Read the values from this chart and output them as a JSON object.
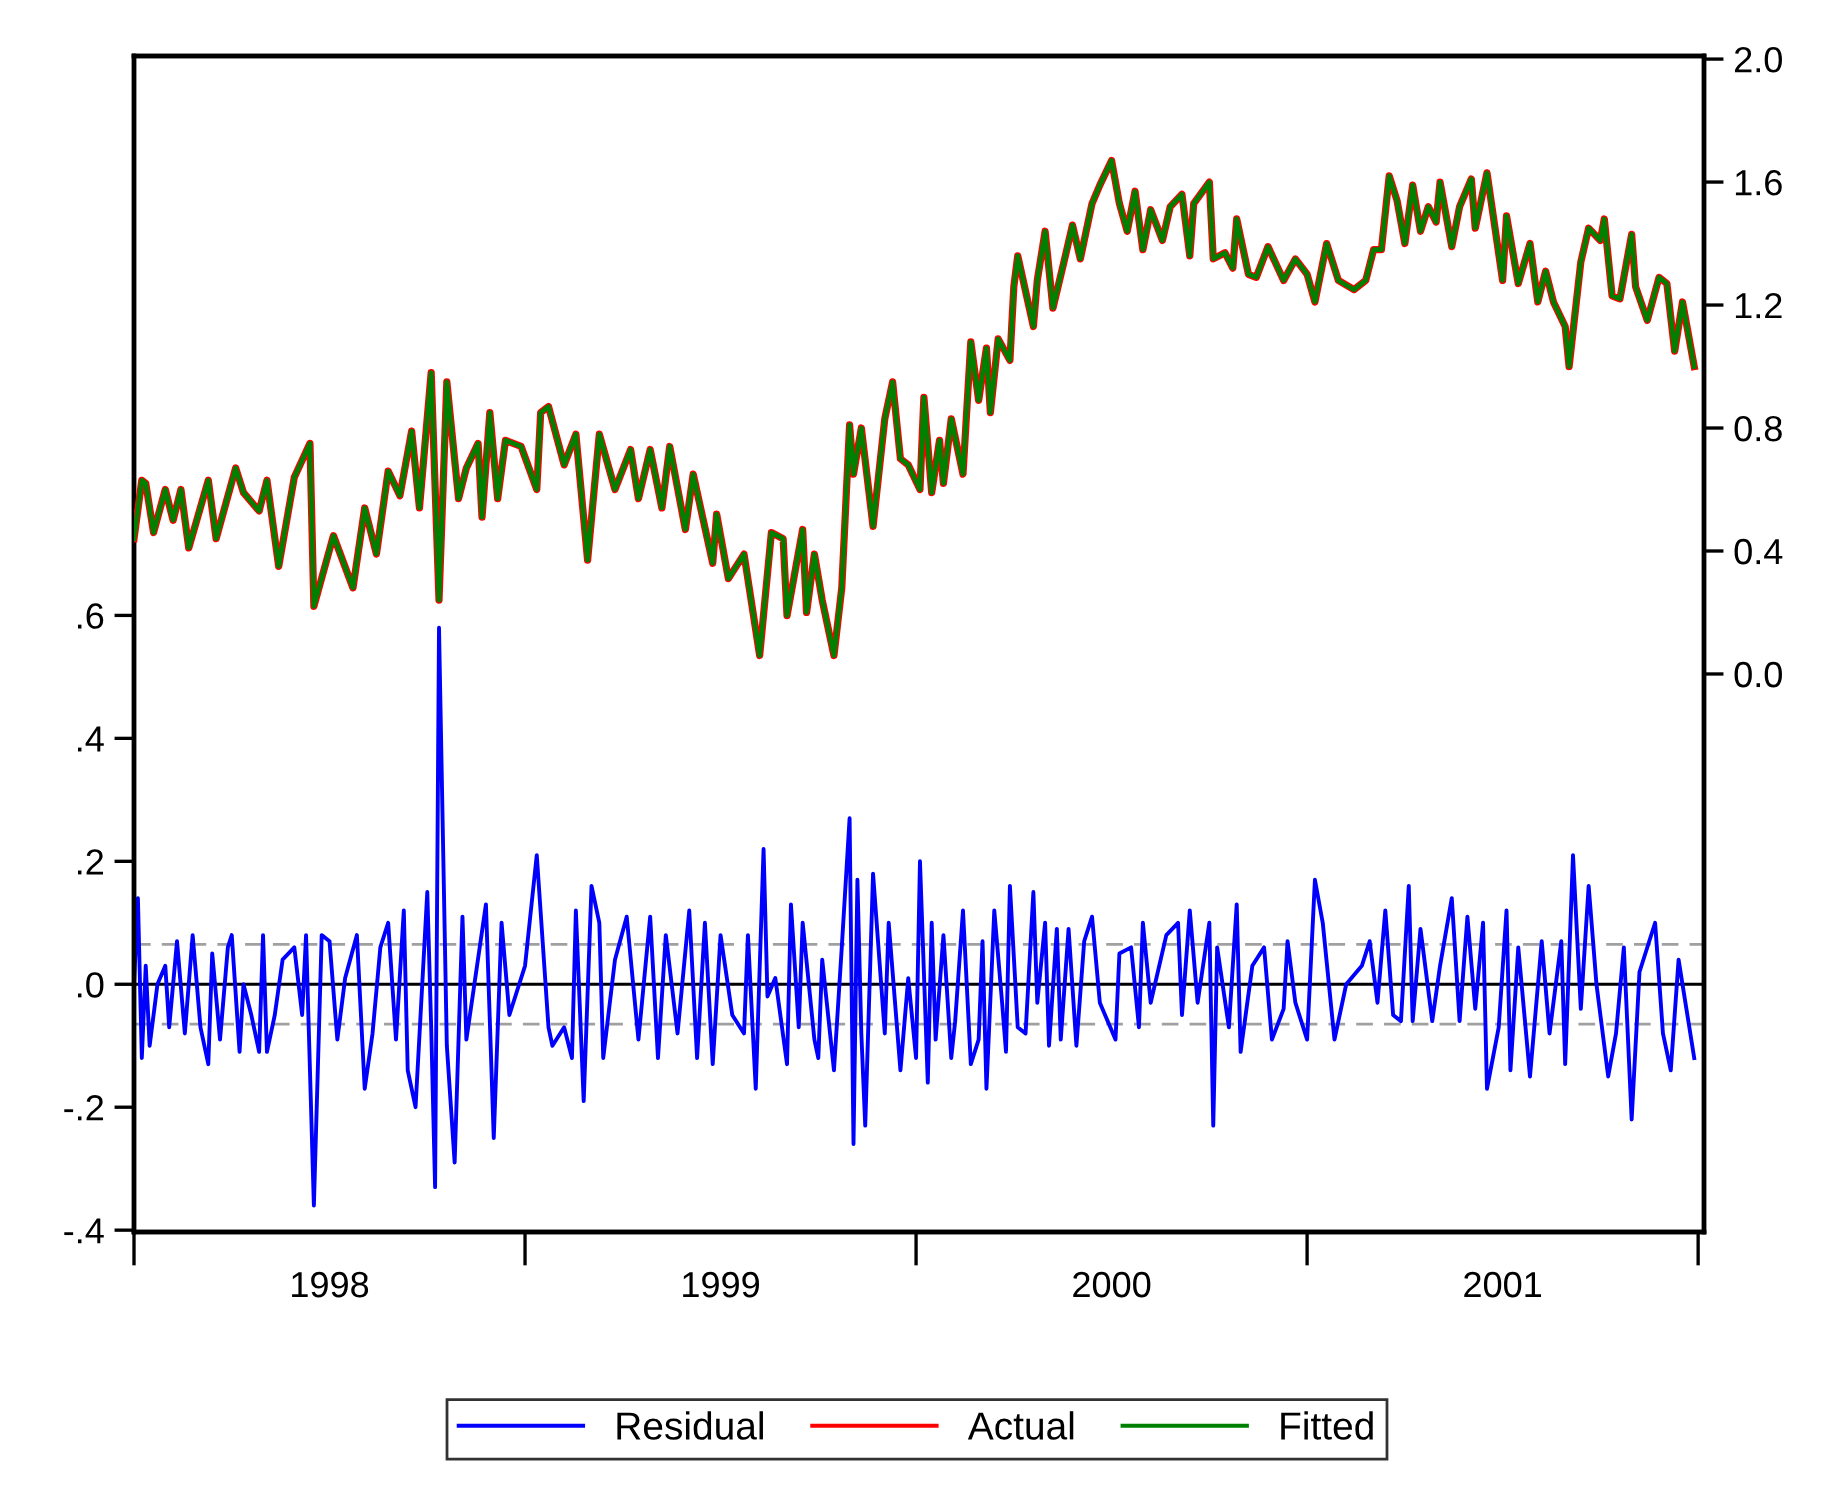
{
  "chart_data": {
    "type": "line",
    "series": [
      {
        "name": "Residual",
        "color": "#0000ff",
        "axis": "y",
        "x": [
          1998.0,
          1998.01,
          1998.02,
          1998.03,
          1998.04,
          1998.06,
          1998.08,
          1998.09,
          1998.11,
          1998.13,
          1998.15,
          1998.17,
          1998.19,
          1998.2,
          1998.22,
          1998.24,
          1998.25,
          1998.27,
          1998.28,
          1998.3,
          1998.32,
          1998.33,
          1998.34,
          1998.36,
          1998.38,
          1998.41,
          1998.43,
          1998.44,
          1998.46,
          1998.48,
          1998.5,
          1998.52,
          1998.54,
          1998.57,
          1998.59,
          1998.61,
          1998.63,
          1998.65,
          1998.67,
          1998.69,
          1998.7,
          1998.72,
          1998.75,
          1998.76,
          1998.77,
          1998.78,
          1998.8,
          1998.82,
          1998.84,
          1998.85,
          1998.9,
          1998.92,
          1998.94,
          1998.96,
          1999.0,
          1999.03,
          1999.06,
          1999.07,
          1999.1,
          1999.12,
          1999.13,
          1999.15,
          1999.17,
          1999.19,
          1999.2,
          1999.23,
          1999.26,
          1999.29,
          1999.32,
          1999.34,
          1999.36,
          1999.39,
          1999.42,
          1999.44,
          1999.46,
          1999.48,
          1999.5,
          1999.53,
          1999.56,
          1999.57,
          1999.59,
          1999.61,
          1999.62,
          1999.64,
          1999.67,
          1999.68,
          1999.7,
          1999.71,
          1999.74,
          1999.75,
          1999.76,
          1999.79,
          1999.81,
          1999.83,
          1999.84,
          1999.85,
          1999.86,
          1999.87,
          1999.89,
          1999.92,
          1999.93,
          1999.96,
          1999.98,
          2000.0,
          2000.01,
          2000.03,
          2000.04,
          2000.05,
          2000.07,
          2000.09,
          2000.1,
          2000.12,
          2000.14,
          2000.16,
          2000.17,
          2000.18,
          2000.2,
          2000.22,
          2000.23,
          2000.24,
          2000.26,
          2000.28,
          2000.3,
          2000.31,
          2000.33,
          2000.34,
          2000.36,
          2000.37,
          2000.39,
          2000.41,
          2000.43,
          2000.45,
          2000.47,
          2000.51,
          2000.52,
          2000.55,
          2000.57,
          2000.58,
          2000.6,
          2000.64,
          2000.67,
          2000.68,
          2000.7,
          2000.72,
          2000.75,
          2000.76,
          2000.77,
          2000.8,
          2000.82,
          2000.83,
          2000.86,
          2000.89,
          2000.91,
          2000.94,
          2000.95,
          2000.97,
          2001.0,
          2001.02,
          2001.04,
          2001.07,
          2001.1,
          2001.14,
          2001.16,
          2001.18,
          2001.2,
          2001.22,
          2001.24,
          2001.26,
          2001.27,
          2001.29,
          2001.32,
          2001.34,
          2001.37,
          2001.39,
          2001.41,
          2001.43,
          2001.45,
          2001.46,
          2001.49,
          2001.51,
          2001.52,
          2001.54,
          2001.57,
          2001.6,
          2001.62,
          2001.65,
          2001.66,
          2001.68,
          2001.7,
          2001.72,
          2001.74,
          2001.77,
          2001.79,
          2001.81,
          2001.83,
          2001.85,
          2001.89,
          2001.91,
          2001.93,
          2001.95,
          2001.97,
          2001.99
        ],
        "values": [
          0.0,
          0.14,
          -0.12,
          0.03,
          -0.1,
          0.0,
          0.03,
          -0.07,
          0.07,
          -0.08,
          0.08,
          -0.07,
          -0.13,
          0.05,
          -0.09,
          0.06,
          0.08,
          -0.11,
          0.0,
          -0.05,
          -0.11,
          0.08,
          -0.11,
          -0.05,
          0.04,
          0.06,
          -0.05,
          0.08,
          -0.36,
          0.08,
          0.07,
          -0.09,
          0.01,
          0.08,
          -0.17,
          -0.08,
          0.06,
          0.1,
          -0.09,
          0.12,
          -0.14,
          -0.2,
          0.15,
          -0.07,
          -0.33,
          0.58,
          -0.1,
          -0.29,
          0.11,
          -0.09,
          0.13,
          -0.25,
          0.1,
          -0.05,
          0.03,
          0.21,
          -0.07,
          -0.1,
          -0.07,
          -0.12,
          0.12,
          -0.19,
          0.16,
          0.1,
          -0.12,
          0.04,
          0.11,
          -0.09,
          0.11,
          -0.12,
          0.08,
          -0.08,
          0.12,
          -0.12,
          0.1,
          -0.13,
          0.08,
          -0.05,
          -0.08,
          0.08,
          -0.17,
          0.22,
          -0.02,
          0.01,
          -0.13,
          0.13,
          -0.07,
          0.1,
          -0.09,
          -0.12,
          0.04,
          -0.14,
          0.06,
          0.27,
          -0.26,
          0.17,
          -0.08,
          -0.23,
          0.18,
          -0.08,
          0.1,
          -0.14,
          0.01,
          -0.12,
          0.2,
          -0.16,
          0.1,
          -0.09,
          0.08,
          -0.12,
          -0.06,
          0.12,
          -0.13,
          -0.09,
          0.07,
          -0.17,
          0.12,
          -0.03,
          -0.11,
          0.16,
          -0.07,
          -0.08,
          0.15,
          -0.03,
          0.1,
          -0.1,
          0.09,
          -0.09,
          0.09,
          -0.1,
          0.07,
          0.11,
          -0.03,
          -0.09,
          0.05,
          0.06,
          -0.07,
          0.1,
          -0.03,
          0.08,
          0.1,
          -0.05,
          0.12,
          -0.03,
          0.1,
          -0.23,
          0.06,
          -0.07,
          0.13,
          -0.11,
          0.03,
          0.06,
          -0.09,
          -0.04,
          0.07,
          -0.03,
          -0.09,
          0.17,
          0.1,
          -0.09,
          0.0,
          0.03,
          0.07,
          -0.03,
          0.12,
          -0.05,
          -0.06,
          0.16,
          -0.06,
          0.09,
          -0.06,
          0.03,
          0.14,
          -0.06,
          0.11,
          -0.04,
          0.1,
          -0.17,
          -0.07,
          0.12,
          -0.14,
          0.06,
          -0.15,
          0.07,
          -0.08,
          0.07,
          -0.13,
          0.21,
          -0.04,
          0.16,
          0.0,
          -0.15,
          -0.08,
          0.06,
          -0.22,
          0.02,
          0.1,
          -0.08,
          -0.14,
          0.04,
          -0.04,
          -0.12
        ]
      },
      {
        "name": "Actual",
        "color": "#ff0000",
        "axis": "y2",
        "x": [
          1998.0,
          1998.02,
          1998.03,
          1998.05,
          1998.08,
          1998.1,
          1998.12,
          1998.14,
          1998.19,
          1998.21,
          1998.26,
          1998.28,
          1998.32,
          1998.34,
          1998.37,
          1998.41,
          1998.45,
          1998.46,
          1998.51,
          1998.56,
          1998.59,
          1998.62,
          1998.65,
          1998.68,
          1998.71,
          1998.73,
          1998.76,
          1998.78,
          1998.8,
          1998.83,
          1998.85,
          1998.88,
          1998.89,
          1998.91,
          1998.93,
          1998.95,
          1998.99,
          1999.01,
          1999.03,
          1999.04,
          1999.06,
          1999.1,
          1999.13,
          1999.16,
          1999.19,
          1999.23,
          1999.27,
          1999.29,
          1999.32,
          1999.35,
          1999.37,
          1999.41,
          1999.43,
          1999.48,
          1999.49,
          1999.52,
          1999.56,
          1999.6,
          1999.63,
          1999.66,
          1999.67,
          1999.71,
          1999.72,
          1999.74,
          1999.76,
          1999.79,
          1999.81,
          1999.83,
          1999.84,
          1999.86,
          1999.89,
          1999.92,
          1999.94,
          1999.96,
          1999.98,
          2000.01,
          2000.02,
          2000.04,
          2000.06,
          2000.07,
          2000.09,
          2000.12,
          2000.14,
          2000.16,
          2000.18,
          2000.19,
          2000.21,
          2000.24,
          2000.25,
          2000.26,
          2000.3,
          2000.31,
          2000.33,
          2000.35,
          2000.38,
          2000.4,
          2000.42,
          2000.45,
          2000.47,
          2000.5,
          2000.52,
          2000.54,
          2000.56,
          2000.58,
          2000.6,
          2000.63,
          2000.65,
          2000.68,
          2000.7,
          2000.71,
          2000.75,
          2000.76,
          2000.79,
          2000.81,
          2000.82,
          2000.85,
          2000.87,
          2000.9,
          2000.94,
          2000.97,
          2001.0,
          2001.02,
          2001.05,
          2001.08,
          2001.12,
          2001.15,
          2001.17,
          2001.19,
          2001.21,
          2001.23,
          2001.25,
          2001.27,
          2001.29,
          2001.31,
          2001.33,
          2001.34,
          2001.37,
          2001.39,
          2001.42,
          2001.43,
          2001.46,
          2001.5,
          2001.51,
          2001.54,
          2001.57,
          2001.59,
          2001.61,
          2001.63,
          2001.66,
          2001.67,
          2001.7,
          2001.72,
          2001.75,
          2001.76,
          2001.78,
          2001.8,
          2001.83,
          2001.84,
          2001.87,
          2001.9,
          2001.92,
          2001.94,
          2001.96,
          2001.99
        ],
        "values": [
          0.44,
          0.63,
          0.62,
          0.46,
          0.6,
          0.5,
          0.6,
          0.41,
          0.63,
          0.44,
          0.67,
          0.59,
          0.53,
          0.63,
          0.35,
          0.64,
          0.75,
          0.22,
          0.45,
          0.28,
          0.54,
          0.39,
          0.66,
          0.58,
          0.79,
          0.54,
          0.98,
          0.24,
          0.95,
          0.57,
          0.67,
          0.75,
          0.51,
          0.85,
          0.57,
          0.76,
          0.74,
          0.67,
          0.6,
          0.85,
          0.87,
          0.68,
          0.78,
          0.37,
          0.78,
          0.6,
          0.73,
          0.57,
          0.73,
          0.54,
          0.74,
          0.47,
          0.65,
          0.36,
          0.52,
          0.31,
          0.39,
          0.06,
          0.46,
          0.44,
          0.19,
          0.47,
          0.2,
          0.39,
          0.24,
          0.06,
          0.28,
          0.81,
          0.65,
          0.8,
          0.48,
          0.83,
          0.95,
          0.7,
          0.68,
          0.6,
          0.9,
          0.59,
          0.76,
          0.62,
          0.83,
          0.65,
          1.08,
          0.89,
          1.06,
          0.85,
          1.09,
          1.02,
          1.26,
          1.36,
          1.13,
          1.28,
          1.44,
          1.19,
          1.35,
          1.46,
          1.35,
          1.53,
          1.59,
          1.67,
          1.53,
          1.44,
          1.57,
          1.38,
          1.51,
          1.41,
          1.52,
          1.56,
          1.36,
          1.53,
          1.6,
          1.35,
          1.37,
          1.32,
          1.48,
          1.3,
          1.29,
          1.39,
          1.28,
          1.35,
          1.3,
          1.21,
          1.4,
          1.28,
          1.25,
          1.28,
          1.38,
          1.38,
          1.62,
          1.54,
          1.4,
          1.59,
          1.44,
          1.52,
          1.47,
          1.6,
          1.39,
          1.52,
          1.61,
          1.45,
          1.63,
          1.28,
          1.49,
          1.27,
          1.4,
          1.21,
          1.31,
          1.21,
          1.13,
          1.0,
          1.34,
          1.45,
          1.41,
          1.48,
          1.23,
          1.22,
          1.43,
          1.26,
          1.15,
          1.29,
          1.27,
          1.05,
          1.21,
          1.0
        ]
      },
      {
        "name": "Fitted",
        "color": "#008000",
        "axis": "y2",
        "x": [
          1998.0,
          1998.02,
          1998.03,
          1998.05,
          1998.08,
          1998.1,
          1998.12,
          1998.14,
          1998.19,
          1998.21,
          1998.26,
          1998.28,
          1998.32,
          1998.34,
          1998.37,
          1998.41,
          1998.45,
          1998.46,
          1998.51,
          1998.56,
          1998.59,
          1998.62,
          1998.65,
          1998.68,
          1998.71,
          1998.73,
          1998.76,
          1998.78,
          1998.8,
          1998.83,
          1998.85,
          1998.88,
          1998.89,
          1998.91,
          1998.93,
          1998.95,
          1998.99,
          1999.01,
          1999.03,
          1999.04,
          1999.06,
          1999.1,
          1999.13,
          1999.16,
          1999.19,
          1999.23,
          1999.27,
          1999.29,
          1999.32,
          1999.35,
          1999.37,
          1999.41,
          1999.43,
          1999.48,
          1999.49,
          1999.52,
          1999.56,
          1999.6,
          1999.63,
          1999.66,
          1999.67,
          1999.71,
          1999.72,
          1999.74,
          1999.76,
          1999.79,
          1999.81,
          1999.83,
          1999.84,
          1999.86,
          1999.89,
          1999.92,
          1999.94,
          1999.96,
          1999.98,
          2000.01,
          2000.02,
          2000.04,
          2000.06,
          2000.07,
          2000.09,
          2000.12,
          2000.14,
          2000.16,
          2000.18,
          2000.19,
          2000.21,
          2000.24,
          2000.25,
          2000.26,
          2000.3,
          2000.31,
          2000.33,
          2000.35,
          2000.38,
          2000.4,
          2000.42,
          2000.45,
          2000.47,
          2000.5,
          2000.52,
          2000.54,
          2000.56,
          2000.58,
          2000.6,
          2000.63,
          2000.65,
          2000.68,
          2000.7,
          2000.71,
          2000.75,
          2000.76,
          2000.79,
          2000.81,
          2000.82,
          2000.85,
          2000.87,
          2000.9,
          2000.94,
          2000.97,
          2001.0,
          2001.02,
          2001.05,
          2001.08,
          2001.12,
          2001.15,
          2001.17,
          2001.19,
          2001.21,
          2001.23,
          2001.25,
          2001.27,
          2001.29,
          2001.31,
          2001.33,
          2001.34,
          2001.37,
          2001.39,
          2001.42,
          2001.43,
          2001.46,
          2001.5,
          2001.51,
          2001.54,
          2001.57,
          2001.59,
          2001.61,
          2001.63,
          2001.66,
          2001.67,
          2001.7,
          2001.72,
          2001.75,
          2001.76,
          2001.78,
          2001.8,
          2001.83,
          2001.84,
          2001.87,
          2001.9,
          2001.92,
          2001.94,
          2001.96,
          2001.99
        ],
        "values": [
          0.44,
          0.63,
          0.62,
          0.46,
          0.6,
          0.5,
          0.6,
          0.41,
          0.63,
          0.44,
          0.67,
          0.59,
          0.53,
          0.63,
          0.35,
          0.64,
          0.75,
          0.22,
          0.45,
          0.28,
          0.54,
          0.39,
          0.66,
          0.58,
          0.79,
          0.54,
          0.98,
          0.24,
          0.95,
          0.57,
          0.67,
          0.75,
          0.51,
          0.85,
          0.57,
          0.76,
          0.74,
          0.67,
          0.6,
          0.85,
          0.87,
          0.68,
          0.78,
          0.37,
          0.78,
          0.6,
          0.73,
          0.57,
          0.73,
          0.54,
          0.74,
          0.47,
          0.65,
          0.36,
          0.52,
          0.31,
          0.39,
          0.06,
          0.46,
          0.44,
          0.19,
          0.47,
          0.2,
          0.39,
          0.24,
          0.06,
          0.28,
          0.81,
          0.65,
          0.8,
          0.48,
          0.83,
          0.95,
          0.7,
          0.68,
          0.6,
          0.9,
          0.59,
          0.76,
          0.62,
          0.83,
          0.65,
          1.08,
          0.89,
          1.06,
          0.85,
          1.09,
          1.02,
          1.26,
          1.36,
          1.13,
          1.28,
          1.44,
          1.19,
          1.35,
          1.46,
          1.35,
          1.53,
          1.59,
          1.67,
          1.53,
          1.44,
          1.57,
          1.38,
          1.51,
          1.41,
          1.52,
          1.56,
          1.36,
          1.53,
          1.6,
          1.35,
          1.37,
          1.32,
          1.48,
          1.3,
          1.29,
          1.39,
          1.28,
          1.35,
          1.3,
          1.21,
          1.4,
          1.28,
          1.25,
          1.28,
          1.38,
          1.38,
          1.62,
          1.54,
          1.4,
          1.59,
          1.44,
          1.52,
          1.47,
          1.6,
          1.39,
          1.52,
          1.61,
          1.45,
          1.63,
          1.28,
          1.49,
          1.27,
          1.4,
          1.21,
          1.31,
          1.21,
          1.13,
          1.0,
          1.34,
          1.45,
          1.41,
          1.48,
          1.23,
          1.22,
          1.43,
          1.26,
          1.15,
          1.29,
          1.27,
          1.05,
          1.21,
          1.0
        ]
      }
    ],
    "xlim": [
      1998.0,
      2002.015
    ],
    "xticks": [
      {
        "value": 1998.5,
        "label": "1998"
      },
      {
        "value": 1999.5,
        "label": "1999"
      },
      {
        "value": 2000.5,
        "label": "2000"
      },
      {
        "value": 2001.5,
        "label": "2001"
      }
    ],
    "ylim": [
      -0.403,
      1.51
    ],
    "yticks": [
      {
        "value": -0.4,
        "label": "-.4"
      },
      {
        "value": -0.2,
        "label": "-.2"
      },
      {
        "value": 0.0,
        "label": ".0"
      },
      {
        "value": 0.2,
        "label": ".2"
      },
      {
        "value": 0.4,
        "label": ".4"
      },
      {
        "value": 0.6,
        "label": ".6"
      }
    ],
    "y2lim": [
      -1.815,
      2.01
    ],
    "y2ticks": [
      {
        "value": 0.0,
        "label": "0.0"
      },
      {
        "value": 0.4,
        "label": "0.4"
      },
      {
        "value": 0.8,
        "label": "0.8"
      },
      {
        "value": 1.2,
        "label": "1.2"
      },
      {
        "value": 1.6,
        "label": "1.6"
      },
      {
        "value": 2.0,
        "label": "2.0"
      }
    ],
    "ref_lines": [
      {
        "axis": "y",
        "value": 0.0,
        "color": "#000000",
        "line_style": "solid"
      },
      {
        "axis": "y",
        "value": 0.065,
        "color": "#a0a0a0",
        "line_style": "dashed"
      },
      {
        "axis": "y",
        "value": -0.065,
        "color": "#a0a0a0",
        "line_style": "dashed"
      }
    ],
    "grid": false,
    "legend": "bottom",
    "line_style": "solid"
  }
}
